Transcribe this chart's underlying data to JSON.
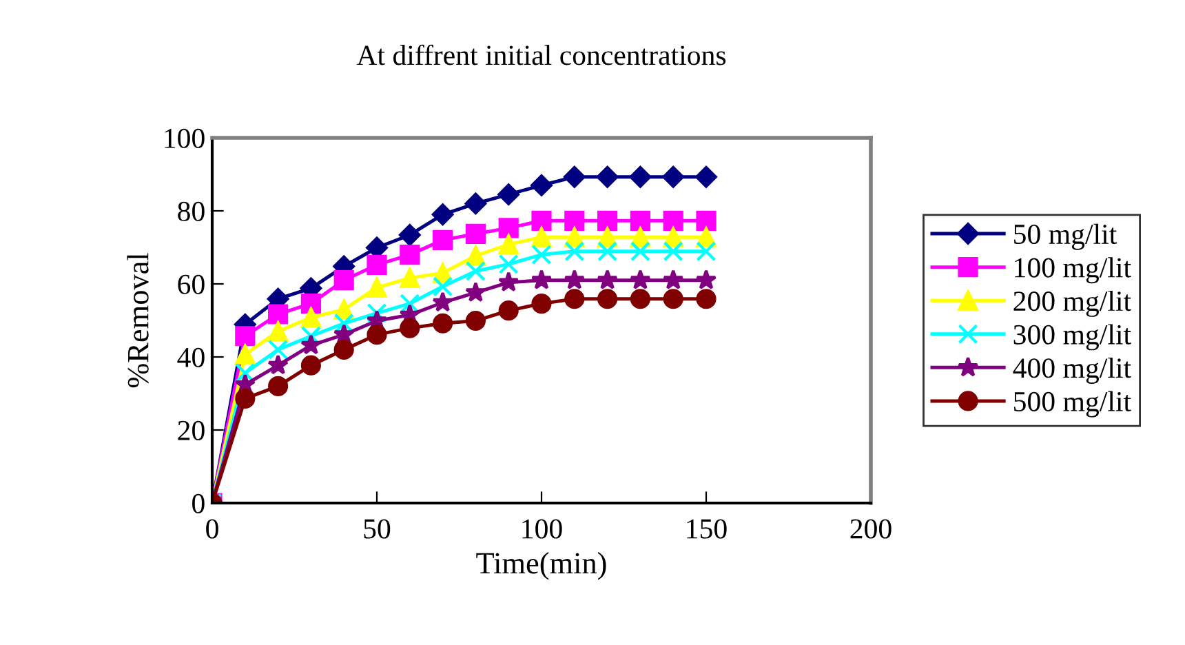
{
  "chart_data": {
    "type": "line",
    "title": "At diffrent initial concentrations",
    "xlabel": "Time(min)",
    "ylabel": "%Removal",
    "x": [
      0,
      10,
      20,
      30,
      40,
      50,
      60,
      70,
      80,
      90,
      100,
      110,
      120,
      130,
      140,
      150
    ],
    "series": [
      {
        "name": "50 mg/lit",
        "color": "#000080",
        "marker": "diamond",
        "values": [
          0,
          48.9,
          55.9,
          58.8,
          64.8,
          69.9,
          73.4,
          79,
          82,
          84.5,
          87,
          89.3,
          89.3,
          89.3,
          89.3,
          89.3
        ]
      },
      {
        "name": "100 mg/lit",
        "color": "#ff00ff",
        "marker": "square",
        "values": [
          0,
          45.7,
          51.7,
          54.6,
          61,
          65.2,
          68,
          72,
          73.7,
          75.3,
          77.3,
          77.3,
          77.3,
          77.3,
          77.3,
          77.3
        ]
      },
      {
        "name": "200 mg/lit",
        "color": "#ffff00",
        "marker": "triangle",
        "values": [
          0,
          40.7,
          47,
          50.8,
          53,
          59,
          61.6,
          63,
          67.7,
          70.8,
          72.8,
          72.8,
          72.8,
          72.8,
          72.8,
          72.8
        ]
      },
      {
        "name": "300 mg/lit",
        "color": "#00ffff",
        "marker": "cross",
        "values": [
          0,
          35.6,
          42,
          45.7,
          49.2,
          52,
          54.6,
          59.3,
          63.5,
          65.4,
          68,
          68.9,
          68.9,
          68.9,
          68.9,
          68.9
        ]
      },
      {
        "name": "400 mg/lit",
        "color": "#800080",
        "marker": "star",
        "values": [
          0,
          32.4,
          37.7,
          43.2,
          46.1,
          49.9,
          51.5,
          54.9,
          57.6,
          60.4,
          61,
          61,
          61,
          61,
          61,
          61
        ]
      },
      {
        "name": "500 mg/lit",
        "color": "#800000",
        "marker": "circle",
        "values": [
          0,
          28.6,
          32,
          37.7,
          42,
          46.1,
          47.9,
          49.2,
          49.9,
          52.7,
          54.6,
          55.9,
          55.9,
          55.9,
          55.9,
          55.9
        ]
      }
    ],
    "xlim": [
      0,
      200
    ],
    "xticks": [
      0,
      50,
      100,
      150,
      200
    ],
    "ylim": [
      0,
      100
    ],
    "yticks": [
      0,
      20,
      40,
      60,
      80,
      100
    ],
    "grid": false,
    "legend": "right",
    "line_style": "solid"
  }
}
